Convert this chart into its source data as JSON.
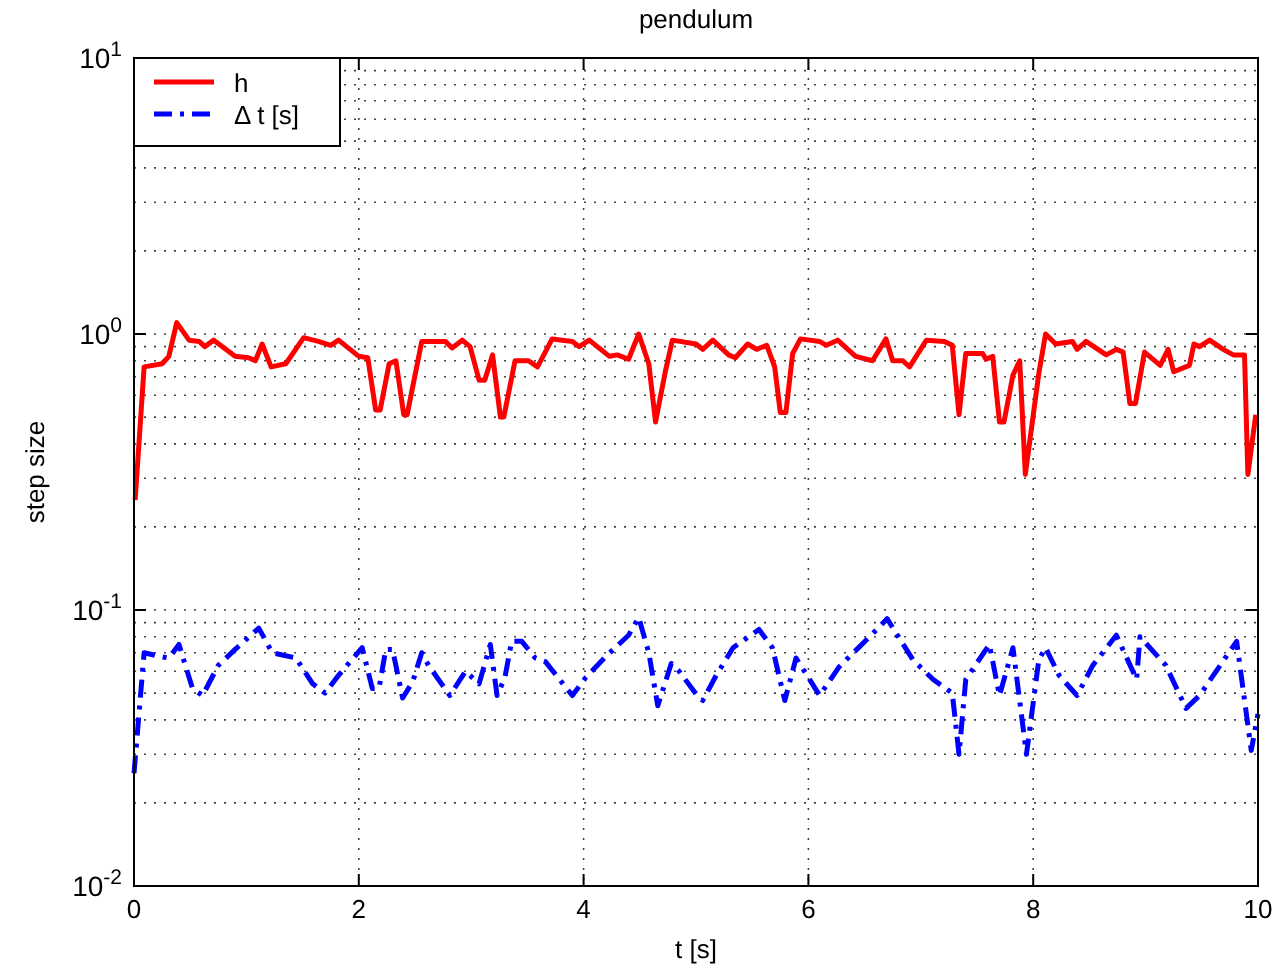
{
  "chart_data": {
    "type": "line",
    "title": "pendulum",
    "xlabel": "t [s]",
    "ylabel": "step size",
    "log": "y",
    "grid": true,
    "legend": "top left",
    "xlim": [
      0,
      10
    ],
    "ylim": [
      0.01,
      10
    ],
    "xticks": [
      0,
      2,
      4,
      6,
      8,
      10
    ],
    "yticks": [
      {
        "value": 0.01,
        "label": "10$^{-2}$"
      },
      {
        "value": 0.1,
        "label": "10$^{-1}$"
      },
      {
        "value": 1,
        "label": "10$^{0}$"
      },
      {
        "value": 10,
        "label": "10$^{1}$"
      }
    ],
    "series": [
      {
        "name": "h",
        "color": "#ff0000",
        "line_style": "solid",
        "x": [
          0.01,
          0.09,
          0.25,
          0.31,
          0.38,
          0.49,
          0.58,
          0.63,
          0.71,
          0.9,
          1.02,
          1.08,
          1.14,
          1.22,
          1.35,
          1.51,
          1.64,
          1.75,
          1.82,
          2.0,
          2.08,
          2.15,
          2.19,
          2.27,
          2.33,
          2.4,
          2.43,
          2.56,
          2.77,
          2.83,
          2.92,
          2.99,
          3.07,
          3.12,
          3.19,
          3.26,
          3.29,
          3.39,
          3.51,
          3.59,
          3.72,
          3.81,
          3.9,
          3.96,
          4.05,
          4.23,
          4.3,
          4.4,
          4.49,
          4.58,
          4.64,
          4.73,
          4.79,
          5.0,
          5.06,
          5.15,
          5.29,
          5.35,
          5.46,
          5.54,
          5.63,
          5.7,
          5.75,
          5.8,
          5.86,
          5.93,
          6.1,
          6.16,
          6.26,
          6.42,
          6.57,
          6.69,
          6.75,
          6.84,
          6.9,
          7.05,
          7.21,
          7.28,
          7.34,
          7.4,
          7.55,
          7.58,
          7.64,
          7.7,
          7.74,
          7.82,
          7.88,
          7.93,
          8.05,
          8.11,
          8.2,
          8.35,
          8.39,
          8.47,
          8.65,
          8.74,
          8.8,
          8.86,
          8.91,
          8.99,
          9.13,
          9.2,
          9.25,
          9.39,
          9.43,
          9.48,
          9.57,
          9.69,
          9.78,
          9.88,
          9.91,
          9.98
        ],
        "values": [
          0.25,
          0.76,
          0.78,
          0.83,
          1.1,
          0.95,
          0.94,
          0.9,
          0.95,
          0.83,
          0.82,
          0.8,
          0.92,
          0.76,
          0.78,
          0.97,
          0.94,
          0.91,
          0.95,
          0.83,
          0.82,
          0.53,
          0.53,
          0.78,
          0.8,
          0.51,
          0.51,
          0.94,
          0.94,
          0.89,
          0.95,
          0.9,
          0.68,
          0.68,
          0.84,
          0.5,
          0.5,
          0.8,
          0.8,
          0.76,
          0.96,
          0.95,
          0.94,
          0.9,
          0.95,
          0.83,
          0.84,
          0.81,
          1.0,
          0.78,
          0.48,
          0.74,
          0.95,
          0.92,
          0.88,
          0.95,
          0.84,
          0.82,
          0.92,
          0.88,
          0.91,
          0.76,
          0.52,
          0.52,
          0.85,
          0.96,
          0.94,
          0.91,
          0.95,
          0.83,
          0.8,
          0.96,
          0.8,
          0.8,
          0.76,
          0.95,
          0.94,
          0.91,
          0.51,
          0.85,
          0.85,
          0.81,
          0.83,
          0.48,
          0.48,
          0.71,
          0.8,
          0.31,
          0.72,
          1.0,
          0.92,
          0.94,
          0.88,
          0.94,
          0.84,
          0.88,
          0.86,
          0.56,
          0.56,
          0.86,
          0.77,
          0.88,
          0.73,
          0.77,
          0.92,
          0.9,
          0.95,
          0.88,
          0.84,
          0.84,
          0.31,
          0.51
        ]
      },
      {
        "name": "Δ t [s]",
        "color": "#0000ff",
        "line_style": "dashdot",
        "x": [
          0.0,
          0.09,
          0.22,
          0.31,
          0.4,
          0.52,
          0.61,
          0.75,
          0.9,
          1.11,
          1.23,
          1.44,
          1.59,
          1.7,
          1.82,
          2.03,
          2.12,
          2.18,
          2.24,
          2.3,
          2.39,
          2.48,
          2.56,
          2.62,
          2.81,
          2.95,
          3.07,
          3.17,
          3.23,
          3.3,
          3.36,
          3.45,
          3.57,
          3.66,
          3.9,
          4.02,
          4.2,
          4.4,
          4.49,
          4.58,
          4.66,
          4.78,
          4.85,
          5.01,
          5.06,
          5.18,
          5.33,
          5.56,
          5.68,
          5.79,
          5.89,
          6.1,
          6.27,
          6.57,
          6.7,
          6.93,
          7.11,
          7.28,
          7.34,
          7.4,
          7.61,
          7.7,
          7.82,
          7.94,
          8.05,
          8.11,
          8.23,
          8.39,
          8.53,
          8.74,
          8.92,
          8.95,
          9.18,
          9.36,
          9.48,
          9.81,
          9.94,
          10.0
        ],
        "values": [
          0.0256,
          0.07,
          0.068,
          0.067,
          0.075,
          0.052,
          0.049,
          0.063,
          0.072,
          0.086,
          0.07,
          0.067,
          0.054,
          0.05,
          0.058,
          0.073,
          0.052,
          0.052,
          0.072,
          0.072,
          0.048,
          0.055,
          0.07,
          0.063,
          0.049,
          0.06,
          0.054,
          0.075,
          0.049,
          0.057,
          0.077,
          0.077,
          0.067,
          0.065,
          0.049,
          0.057,
          0.068,
          0.081,
          0.094,
          0.07,
          0.045,
          0.064,
          0.06,
          0.049,
          0.047,
          0.058,
          0.073,
          0.085,
          0.073,
          0.047,
          0.067,
          0.049,
          0.062,
          0.082,
          0.093,
          0.066,
          0.056,
          0.05,
          0.03,
          0.056,
          0.075,
          0.049,
          0.073,
          0.03,
          0.066,
          0.073,
          0.058,
          0.049,
          0.063,
          0.081,
          0.056,
          0.08,
          0.063,
          0.044,
          0.049,
          0.077,
          0.031,
          0.042
        ]
      }
    ]
  }
}
